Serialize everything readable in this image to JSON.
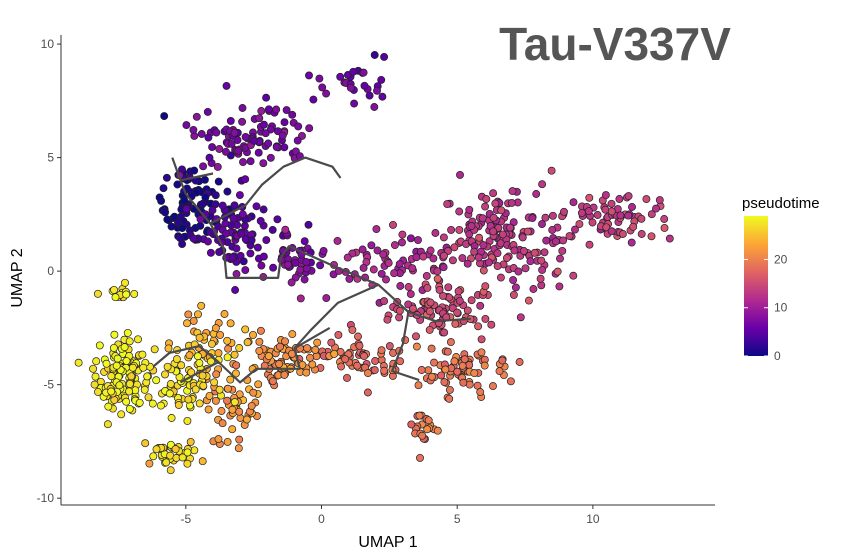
{
  "chart_data": {
    "type": "scatter",
    "title": "Tau-V337V",
    "xlabel": "UMAP 1",
    "ylabel": "UMAP 2",
    "xlim": [
      -9.6,
      14.5
    ],
    "ylim": [
      -10.3,
      10.4
    ],
    "xticks": [
      -5,
      0,
      5,
      10
    ],
    "yticks": [
      -10,
      -5,
      0,
      5,
      10
    ],
    "grid": false,
    "colorbar": {
      "title": "pseudotime",
      "range": [
        0,
        29
      ],
      "ticks": [
        0,
        10,
        20
      ],
      "colormap": "plasma",
      "stops": [
        "#0d0887",
        "#6a00a8",
        "#b12a90",
        "#e16462",
        "#fca636",
        "#f0f921"
      ],
      "placement": "right"
    },
    "point_style": {
      "edge_color": "#222222",
      "radius_units": "small"
    },
    "clusters": [
      {
        "pseudotime": 1,
        "center": [
          -4.8,
          3.0
        ],
        "spread": [
          1.3,
          1.7
        ],
        "count": 90
      },
      {
        "pseudotime": 5,
        "center": [
          -3.3,
          1.6
        ],
        "spread": [
          1.4,
          1.6
        ],
        "count": 90
      },
      {
        "pseudotime": 7,
        "center": [
          -2.6,
          5.9
        ],
        "spread": [
          2.0,
          1.3
        ],
        "count": 95
      },
      {
        "pseudotime": 8,
        "center": [
          -1.0,
          0.3
        ],
        "spread": [
          1.0,
          1.2
        ],
        "count": 45
      },
      {
        "pseudotime": 6,
        "center": [
          1.2,
          8.2
        ],
        "spread": [
          1.3,
          1.0
        ],
        "count": 28
      },
      {
        "pseudotime": 11,
        "center": [
          2.5,
          0.5
        ],
        "spread": [
          2.0,
          1.3
        ],
        "count": 60
      },
      {
        "pseudotime": 13,
        "center": [
          6.5,
          1.5
        ],
        "spread": [
          2.8,
          1.7
        ],
        "count": 170
      },
      {
        "pseudotime": 14,
        "center": [
          10.8,
          2.4
        ],
        "spread": [
          1.8,
          1.2
        ],
        "count": 65
      },
      {
        "pseudotime": 15,
        "center": [
          4.7,
          -1.7
        ],
        "spread": [
          2.0,
          1.1
        ],
        "count": 90
      },
      {
        "pseudotime": 18,
        "center": [
          1.6,
          -3.8
        ],
        "spread": [
          1.8,
          1.0
        ],
        "count": 60
      },
      {
        "pseudotime": 19,
        "center": [
          5.2,
          -4.2
        ],
        "spread": [
          1.4,
          1.0
        ],
        "count": 70
      },
      {
        "pseudotime": 19,
        "center": [
          3.8,
          -7.0
        ],
        "spread": [
          0.4,
          0.9
        ],
        "count": 20
      },
      {
        "pseudotime": 21,
        "center": [
          -1.5,
          -3.8
        ],
        "spread": [
          1.3,
          1.0
        ],
        "count": 75
      },
      {
        "pseudotime": 22,
        "center": [
          -3.3,
          -5.6
        ],
        "spread": [
          1.0,
          1.6
        ],
        "count": 55
      },
      {
        "pseudotime": 24,
        "center": [
          -4.0,
          -3.0
        ],
        "spread": [
          1.2,
          1.0
        ],
        "count": 45
      },
      {
        "pseudotime": 27,
        "center": [
          -5.0,
          -4.8
        ],
        "spread": [
          1.2,
          1.4
        ],
        "count": 70
      },
      {
        "pseudotime": 28,
        "center": [
          -7.3,
          -4.5
        ],
        "spread": [
          0.9,
          1.5
        ],
        "count": 130
      },
      {
        "pseudotime": 28,
        "center": [
          -7.6,
          -1.0
        ],
        "spread": [
          0.5,
          0.4
        ],
        "count": 14
      },
      {
        "pseudotime": 27,
        "center": [
          -5.5,
          -8.0
        ],
        "spread": [
          1.0,
          0.6
        ],
        "count": 35
      }
    ],
    "trajectory": [
      [
        [
          -5.5,
          5.0
        ],
        [
          -5.2,
          4.0
        ],
        [
          -5.0,
          3.4
        ],
        [
          -4.1,
          2.1
        ],
        [
          -3.6,
          1.0
        ],
        [
          -3.5,
          -0.3
        ],
        [
          -1.6,
          -0.3
        ],
        [
          -1.5,
          0.6
        ],
        [
          -1.2,
          1.1
        ],
        [
          0.5,
          0.2
        ],
        [
          2.1,
          -0.6
        ],
        [
          3.2,
          -1.8
        ],
        [
          4.2,
          -2.2
        ],
        [
          5.5,
          -2.1
        ]
      ],
      [
        [
          -4.1,
          2.1
        ],
        [
          -2.8,
          2.9
        ],
        [
          -2.2,
          3.8
        ],
        [
          -1.4,
          4.6
        ],
        [
          -0.6,
          5.0
        ],
        [
          0.4,
          4.6
        ],
        [
          0.7,
          4.1
        ]
      ],
      [
        [
          -5.2,
          4.0
        ],
        [
          -4.0,
          4.3
        ]
      ],
      [
        [
          3.2,
          -1.8
        ],
        [
          3.0,
          -3.2
        ],
        [
          2.6,
          -4.4
        ],
        [
          3.6,
          -4.8
        ]
      ],
      [
        [
          2.1,
          -0.6
        ],
        [
          0.6,
          -1.4
        ],
        [
          -0.4,
          -2.6
        ],
        [
          -1.0,
          -3.4
        ],
        [
          -0.8,
          -4.3
        ],
        [
          -2.4,
          -4.3
        ],
        [
          -3.0,
          -4.9
        ],
        [
          -3.8,
          -4.0
        ],
        [
          -4.5,
          -3.3
        ],
        [
          -5.6,
          -3.6
        ],
        [
          -6.2,
          -4.2
        ]
      ],
      [
        [
          -3.8,
          -4.0
        ],
        [
          -5.2,
          -4.9
        ]
      ],
      [
        [
          -1.0,
          -3.4
        ],
        [
          0.3,
          -2.5
        ]
      ]
    ]
  }
}
